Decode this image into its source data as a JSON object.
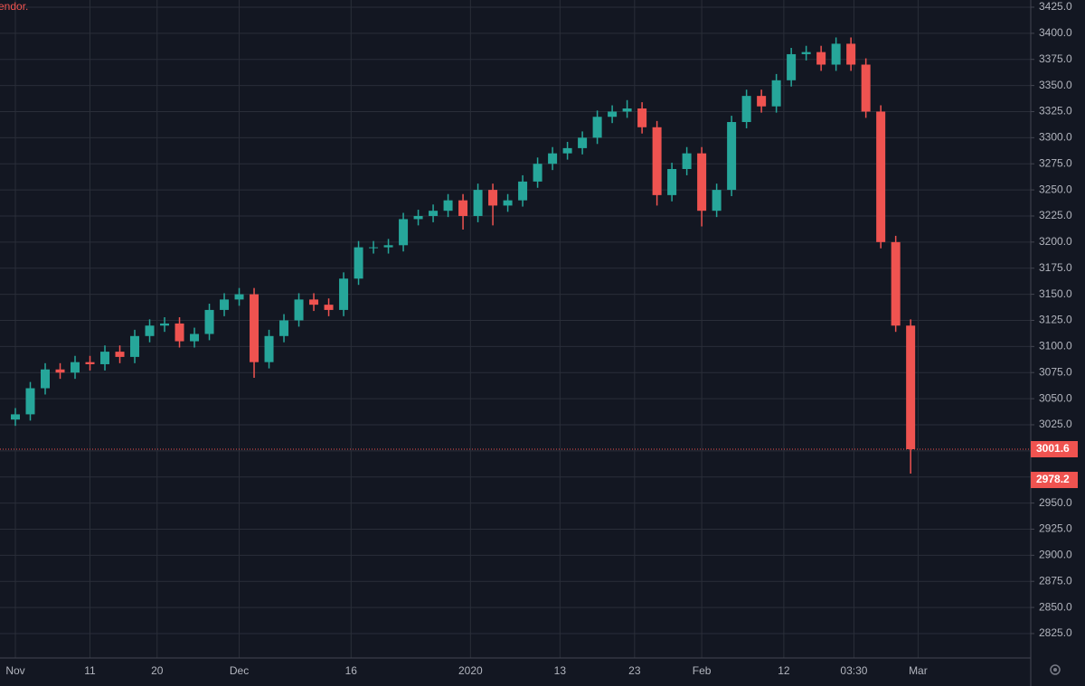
{
  "chart_data": {
    "type": "candlestick",
    "note_text": "endor.",
    "x": [
      0,
      2,
      4,
      6,
      8,
      10,
      12,
      14,
      16,
      18,
      20,
      22,
      24,
      26,
      28,
      30,
      32,
      34,
      36,
      38,
      40,
      42,
      44,
      46,
      48,
      50,
      52,
      54,
      56,
      58,
      60,
      62,
      64,
      66,
      68,
      70,
      72,
      74,
      76,
      78,
      80,
      82,
      84,
      86,
      88,
      90,
      92,
      94,
      96,
      98,
      100,
      102,
      104,
      106,
      108,
      110,
      112,
      114,
      116,
      118,
      120
    ],
    "open": [
      3030,
      3035,
      3060,
      3078,
      3075,
      3085,
      3083,
      3095,
      3090,
      3110,
      3120,
      3122,
      3105,
      3112,
      3135,
      3145,
      3150,
      3085,
      3110,
      3125,
      3145,
      3140,
      3135,
      3165,
      3195,
      3195,
      3197,
      3222,
      3225,
      3230,
      3240,
      3225,
      3250,
      3235,
      3240,
      3258,
      3275,
      3285,
      3290,
      3300,
      3320,
      3325,
      3328,
      3310,
      3245,
      3270,
      3285,
      3230,
      3250,
      3315,
      3340,
      3330,
      3355,
      3380,
      3382,
      3370,
      3390,
      3370,
      3325,
      3200,
      3120
    ],
    "high": [
      3041,
      3066,
      3084,
      3084,
      3091,
      3091,
      3101,
      3101,
      3116,
      3126,
      3128,
      3128,
      3118,
      3141,
      3151,
      3156,
      3156,
      3116,
      3131,
      3151,
      3151,
      3146,
      3171,
      3201,
      3201,
      3203,
      3228,
      3231,
      3236,
      3246,
      3246,
      3256,
      3256,
      3246,
      3264,
      3281,
      3291,
      3296,
      3306,
      3326,
      3331,
      3336,
      3334,
      3316,
      3276,
      3291,
      3291,
      3256,
      3321,
      3346,
      3346,
      3361,
      3386,
      3388,
      3388,
      3396,
      3396,
      3376,
      3331,
      3206,
      3126
    ],
    "low": [
      3024,
      3029,
      3054,
      3069,
      3069,
      3077,
      3077,
      3084,
      3084,
      3104,
      3114,
      3099,
      3099,
      3106,
      3129,
      3139,
      3070,
      3079,
      3104,
      3119,
      3134,
      3129,
      3129,
      3159,
      3189,
      3189,
      3191,
      3216,
      3219,
      3224,
      3212,
      3219,
      3216,
      3229,
      3234,
      3252,
      3269,
      3279,
      3284,
      3294,
      3314,
      3319,
      3304,
      3235,
      3239,
      3264,
      3215,
      3224,
      3244,
      3309,
      3324,
      3324,
      3349,
      3374,
      3364,
      3364,
      3364,
      3319,
      3194,
      3114,
      2978.2
    ],
    "close": [
      3035,
      3060,
      3078,
      3075,
      3085,
      3083,
      3095,
      3090,
      3110,
      3120,
      3122,
      3105,
      3112,
      3135,
      3145,
      3150,
      3085,
      3110,
      3125,
      3145,
      3140,
      3135,
      3165,
      3195,
      3195,
      3197,
      3222,
      3225,
      3230,
      3240,
      3225,
      3250,
      3235,
      3240,
      3258,
      3275,
      3285,
      3290,
      3300,
      3320,
      3325,
      3328,
      3310,
      3245,
      3270,
      3285,
      3230,
      3250,
      3315,
      3340,
      3330,
      3355,
      3380,
      3382,
      3370,
      3390,
      3370,
      3325,
      3200,
      3120,
      3001.6
    ],
    "up_color": "#26a69a",
    "down_color": "#ef5350",
    "last_price": 3001.6,
    "low_price": 2978.2,
    "xlim": [
      -2.06,
      136.1
    ],
    "xticks": [
      {
        "value": 0,
        "label": "Nov"
      },
      {
        "value": 10,
        "label": "11"
      },
      {
        "value": 19,
        "label": "20"
      },
      {
        "value": 30,
        "label": "Dec"
      },
      {
        "value": 45,
        "label": "16"
      },
      {
        "value": 61,
        "label": "2020"
      },
      {
        "value": 73,
        "label": "13"
      },
      {
        "value": 83,
        "label": "23"
      },
      {
        "value": 92,
        "label": "Feb"
      },
      {
        "value": 103,
        "label": "12"
      },
      {
        "value": 112.4,
        "label": "03:30"
      },
      {
        "value": 121,
        "label": "Mar"
      }
    ],
    "ylim": [
      2801.6,
      3431.9
    ],
    "yticks": [
      {
        "value": 2825,
        "label": "2825.0"
      },
      {
        "value": 2850,
        "label": "2850.0"
      },
      {
        "value": 2875,
        "label": "2875.0"
      },
      {
        "value": 2900,
        "label": "2900.0"
      },
      {
        "value": 2925,
        "label": "2925.0"
      },
      {
        "value": 2950,
        "label": "2950.0"
      },
      {
        "value": 2975,
        "label": "2975.0"
      },
      {
        "value": 3000,
        "label": "3000.0"
      },
      {
        "value": 3025,
        "label": "3025.0"
      },
      {
        "value": 3050,
        "label": "3050.0"
      },
      {
        "value": 3075,
        "label": "3075.0"
      },
      {
        "value": 3100,
        "label": "3100.0"
      },
      {
        "value": 3125,
        "label": "3125.0"
      },
      {
        "value": 3150,
        "label": "3150.0"
      },
      {
        "value": 3175,
        "label": "3175.0"
      },
      {
        "value": 3200,
        "label": "3200.0"
      },
      {
        "value": 3225,
        "label": "3225.0"
      },
      {
        "value": 3250,
        "label": "3250.0"
      },
      {
        "value": 3275,
        "label": "3275.0"
      },
      {
        "value": 3300,
        "label": "3300.0"
      },
      {
        "value": 3325,
        "label": "3325.0"
      },
      {
        "value": 3350,
        "label": "3350.0"
      },
      {
        "value": 3375,
        "label": "3375.0"
      },
      {
        "value": 3400,
        "label": "3400.0"
      },
      {
        "value": 3425,
        "label": "3425.0"
      }
    ],
    "grid": true
  }
}
